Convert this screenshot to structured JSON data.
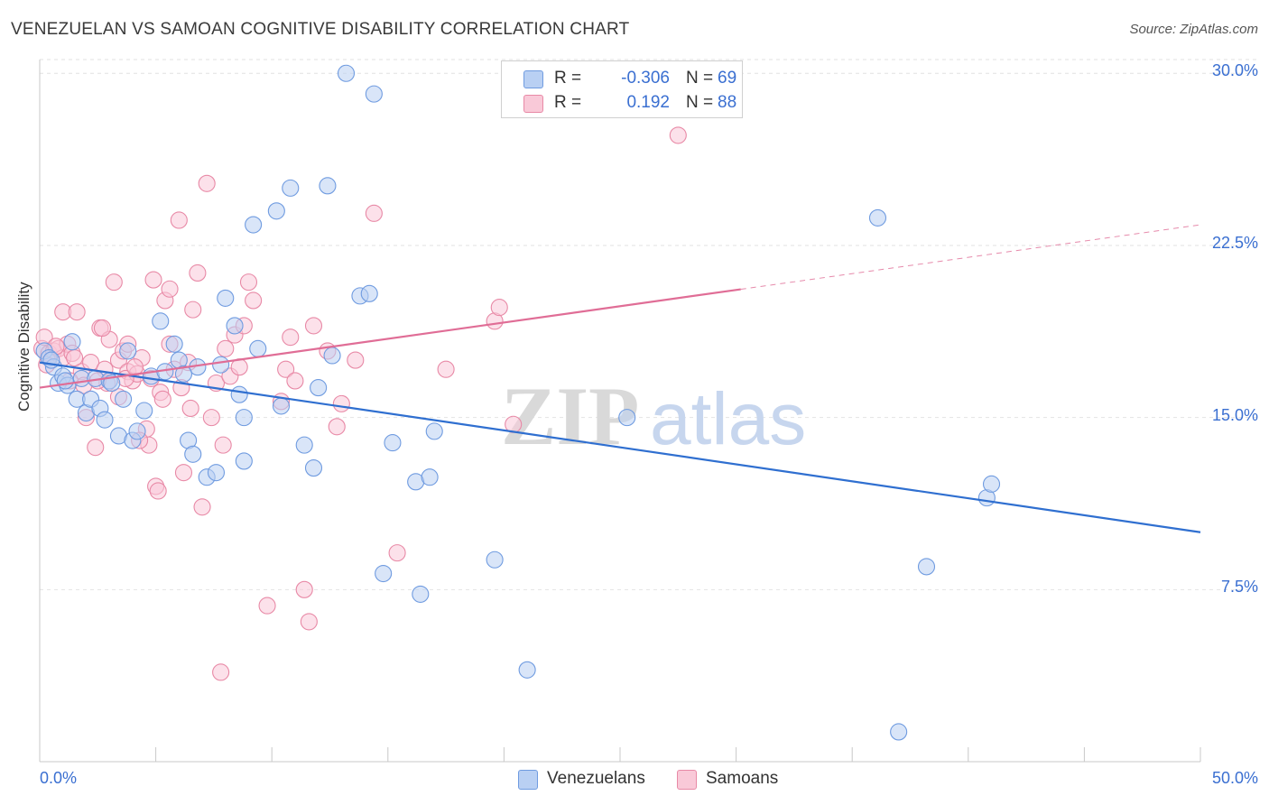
{
  "title": "VENEZUELAN VS SAMOAN COGNITIVE DISABILITY CORRELATION CHART",
  "source": "Source: ZipAtlas.com",
  "watermark": {
    "zip": "ZIP",
    "atlas": "atlas"
  },
  "legend_top": {
    "rows": [
      {
        "r_label": "R =",
        "r_value": "-0.306",
        "n_label": "N =",
        "n_value": "69",
        "color": "#a9c4ee",
        "border": "#6f9be0"
      },
      {
        "r_label": "R =",
        "r_value": "0.192",
        "n_label": "N =",
        "n_value": "88",
        "color": "#f7bccf",
        "border": "#e889a6"
      }
    ]
  },
  "legend_bottom": [
    {
      "label": "Venezuelans",
      "color": "#b9d0f3",
      "border": "#6f9be0"
    },
    {
      "label": "Samoans",
      "color": "#f9c9d8",
      "border": "#e889a6"
    }
  ],
  "chart_data": {
    "type": "scatter",
    "title": "VENEZUELAN VS SAMOAN COGNITIVE DISABILITY CORRELATION CHART",
    "xlabel": "",
    "ylabel": "Cognitive Disability",
    "xlim": [
      0,
      50
    ],
    "ylim": [
      0,
      30.6
    ],
    "x_tick_labels": [
      "0.0%",
      "50.0%"
    ],
    "y_ticks": [
      {
        "value": 7.5,
        "label": "7.5%"
      },
      {
        "value": 15.0,
        "label": "15.0%"
      },
      {
        "value": 22.5,
        "label": "22.5%"
      },
      {
        "value": 30.0,
        "label": "30.0%"
      }
    ],
    "grid": "horizontal-dashed",
    "legend": "bottom-center",
    "series": [
      {
        "name": "Venezuelans",
        "color": "#6f9be0",
        "fill": "#b9d0f3",
        "trend": {
          "x0": 0,
          "y0": 17.4,
          "x1": 50,
          "y1": 10.0,
          "dashed_from": null
        },
        "points": [
          [
            0.2,
            17.9
          ],
          [
            0.4,
            17.6
          ],
          [
            0.6,
            17.2
          ],
          [
            0.8,
            16.5
          ],
          [
            1.0,
            16.8
          ],
          [
            1.2,
            16.4
          ],
          [
            1.4,
            18.3
          ],
          [
            1.6,
            15.8
          ],
          [
            1.8,
            16.7
          ],
          [
            2.0,
            15.2
          ],
          [
            2.2,
            15.8
          ],
          [
            2.4,
            16.7
          ],
          [
            2.6,
            15.4
          ],
          [
            2.8,
            14.9
          ],
          [
            3.0,
            16.6
          ],
          [
            3.4,
            14.2
          ],
          [
            3.6,
            15.8
          ],
          [
            3.8,
            17.9
          ],
          [
            4.0,
            14.0
          ],
          [
            4.2,
            14.4
          ],
          [
            4.5,
            15.3
          ],
          [
            4.8,
            16.8
          ],
          [
            5.2,
            19.2
          ],
          [
            5.4,
            17.0
          ],
          [
            5.8,
            18.2
          ],
          [
            6.0,
            17.5
          ],
          [
            6.4,
            14.0
          ],
          [
            6.6,
            13.4
          ],
          [
            6.8,
            17.2
          ],
          [
            7.2,
            12.4
          ],
          [
            7.6,
            12.6
          ],
          [
            7.8,
            17.3
          ],
          [
            8.0,
            20.2
          ],
          [
            8.4,
            19.0
          ],
          [
            8.6,
            16.0
          ],
          [
            8.8,
            15.0
          ],
          [
            8.8,
            13.1
          ],
          [
            9.2,
            23.4
          ],
          [
            9.4,
            18.0
          ],
          [
            10.2,
            24.0
          ],
          [
            10.4,
            15.5
          ],
          [
            10.8,
            25.0
          ],
          [
            11.4,
            13.8
          ],
          [
            11.8,
            12.8
          ],
          [
            12.0,
            16.3
          ],
          [
            12.4,
            25.1
          ],
          [
            12.6,
            17.7
          ],
          [
            13.2,
            30.0
          ],
          [
            13.8,
            20.3
          ],
          [
            14.2,
            20.4
          ],
          [
            14.4,
            29.1
          ],
          [
            14.8,
            8.2
          ],
          [
            15.2,
            13.9
          ],
          [
            16.2,
            12.2
          ],
          [
            16.4,
            7.3
          ],
          [
            16.8,
            12.4
          ],
          [
            17.0,
            14.4
          ],
          [
            19.6,
            8.8
          ],
          [
            21.0,
            4.0
          ],
          [
            25.3,
            15.0
          ],
          [
            36.1,
            23.7
          ],
          [
            37.0,
            1.3
          ],
          [
            38.2,
            8.5
          ],
          [
            40.8,
            11.5
          ],
          [
            41.0,
            12.1
          ],
          [
            0.5,
            17.5
          ],
          [
            1.1,
            16.6
          ],
          [
            3.1,
            16.5
          ],
          [
            6.2,
            16.9
          ]
        ]
      },
      {
        "name": "Samoans",
        "color": "#e889a6",
        "fill": "#f9c9d8",
        "trend": {
          "x0": 0,
          "y0": 16.3,
          "x1": 50,
          "y1": 23.4,
          "dashed_from": 30.2
        },
        "points": [
          [
            0.1,
            18.0
          ],
          [
            0.2,
            18.5
          ],
          [
            0.4,
            17.8
          ],
          [
            0.6,
            17.9
          ],
          [
            0.8,
            18.0
          ],
          [
            1.0,
            19.6
          ],
          [
            1.0,
            17.6
          ],
          [
            1.2,
            18.2
          ],
          [
            1.4,
            17.8
          ],
          [
            1.6,
            19.6
          ],
          [
            1.8,
            17.0
          ],
          [
            1.9,
            16.4
          ],
          [
            2.0,
            15.0
          ],
          [
            2.2,
            17.4
          ],
          [
            2.4,
            13.7
          ],
          [
            2.6,
            18.9
          ],
          [
            2.8,
            17.1
          ],
          [
            2.9,
            16.5
          ],
          [
            3.0,
            18.4
          ],
          [
            3.2,
            20.9
          ],
          [
            3.4,
            17.5
          ],
          [
            3.4,
            15.9
          ],
          [
            3.6,
            17.9
          ],
          [
            3.8,
            18.2
          ],
          [
            3.8,
            17.0
          ],
          [
            4.0,
            16.6
          ],
          [
            4.2,
            16.9
          ],
          [
            4.4,
            17.6
          ],
          [
            4.6,
            14.5
          ],
          [
            4.7,
            13.8
          ],
          [
            4.9,
            21.0
          ],
          [
            5.0,
            12.0
          ],
          [
            5.1,
            11.8
          ],
          [
            5.2,
            16.1
          ],
          [
            5.4,
            20.1
          ],
          [
            5.6,
            20.6
          ],
          [
            5.6,
            18.2
          ],
          [
            5.8,
            17.1
          ],
          [
            6.0,
            23.6
          ],
          [
            6.2,
            12.6
          ],
          [
            6.4,
            17.4
          ],
          [
            6.5,
            15.4
          ],
          [
            6.6,
            19.7
          ],
          [
            6.8,
            21.3
          ],
          [
            7.0,
            11.1
          ],
          [
            7.2,
            25.2
          ],
          [
            7.4,
            15.0
          ],
          [
            7.6,
            16.5
          ],
          [
            7.8,
            3.9
          ],
          [
            7.9,
            13.8
          ],
          [
            8.2,
            16.8
          ],
          [
            8.4,
            18.6
          ],
          [
            8.6,
            17.2
          ],
          [
            8.8,
            19.0
          ],
          [
            9.0,
            20.9
          ],
          [
            9.2,
            20.1
          ],
          [
            9.8,
            6.8
          ],
          [
            10.4,
            15.7
          ],
          [
            10.6,
            17.1
          ],
          [
            10.8,
            18.5
          ],
          [
            11.0,
            16.6
          ],
          [
            11.4,
            7.5
          ],
          [
            11.6,
            6.1
          ],
          [
            11.8,
            19.0
          ],
          [
            12.4,
            17.9
          ],
          [
            12.8,
            14.6
          ],
          [
            13.0,
            15.6
          ],
          [
            13.6,
            17.5
          ],
          [
            14.4,
            23.9
          ],
          [
            15.4,
            9.1
          ],
          [
            17.5,
            17.1
          ],
          [
            19.6,
            19.2
          ],
          [
            19.8,
            19.8
          ],
          [
            20.4,
            14.7
          ],
          [
            27.5,
            27.3
          ],
          [
            0.3,
            17.3
          ],
          [
            1.3,
            16.6
          ],
          [
            2.5,
            16.6
          ],
          [
            3.7,
            16.7
          ],
          [
            4.3,
            14.0
          ],
          [
            4.8,
            16.7
          ],
          [
            5.3,
            15.8
          ],
          [
            0.7,
            18.1
          ],
          [
            1.5,
            17.6
          ],
          [
            2.7,
            18.9
          ],
          [
            4.1,
            17.2
          ],
          [
            6.1,
            16.3
          ],
          [
            8.0,
            18.0
          ]
        ]
      }
    ]
  }
}
